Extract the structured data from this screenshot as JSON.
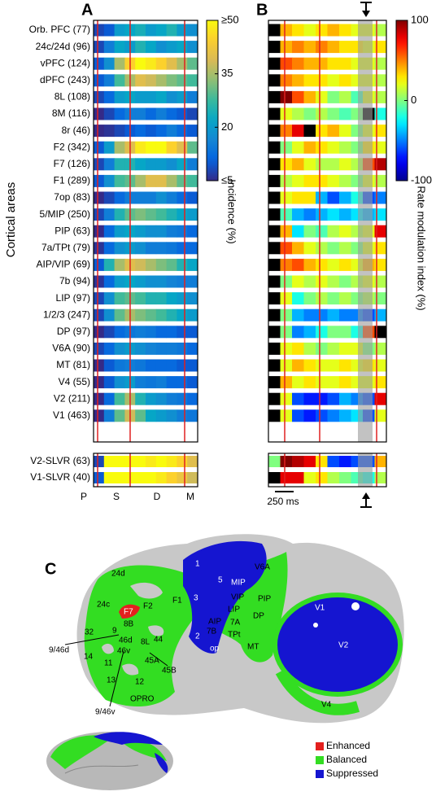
{
  "chart_data": [
    {
      "type": "heatmap",
      "panel": "A",
      "ylabel": "Cortical areas",
      "categories": [
        "Orb. PFC (77)",
        "24c/24d (96)",
        "vPFC (124)",
        "dPFC (243)",
        "8L (108)",
        "8M (116)",
        "8r (46)",
        "F2 (342)",
        "F7 (126)",
        "F1 (289)",
        "7op (83)",
        "5/MIP (250)",
        "PIP (63)",
        "7a/TPt (79)",
        "AIP/VIP (69)",
        "7b (94)",
        "LIP (97)",
        "1/2/3 (247)",
        "DP (97)",
        "V6A (90)",
        "MT (81)",
        "V4 (55)",
        "V2 (211)",
        "V1 (463)"
      ],
      "values": [
        [
          8,
          10,
          20,
          22,
          24,
          20,
          22,
          25,
          20,
          18
        ],
        [
          8,
          15,
          22,
          20,
          25,
          22,
          18,
          20,
          22,
          18
        ],
        [
          10,
          18,
          35,
          45,
          50,
          48,
          45,
          40,
          35,
          30
        ],
        [
          10,
          15,
          28,
          35,
          40,
          38,
          35,
          32,
          30,
          28
        ],
        [
          8,
          12,
          20,
          22,
          20,
          20,
          22,
          18,
          20,
          15
        ],
        [
          5,
          8,
          12,
          15,
          15,
          12,
          15,
          12,
          10,
          8
        ],
        [
          5,
          6,
          8,
          10,
          12,
          10,
          12,
          15,
          12,
          10
        ],
        [
          10,
          20,
          35,
          40,
          48,
          50,
          50,
          45,
          40,
          30
        ],
        [
          8,
          15,
          25,
          25,
          22,
          20,
          20,
          18,
          22,
          15
        ],
        [
          10,
          18,
          28,
          30,
          35,
          40,
          40,
          35,
          30,
          28
        ],
        [
          5,
          8,
          12,
          15,
          15,
          15,
          18,
          15,
          12,
          10
        ],
        [
          8,
          15,
          25,
          30,
          32,
          30,
          28,
          25,
          22,
          20
        ],
        [
          5,
          12,
          20,
          22,
          20,
          18,
          18,
          15,
          14,
          12
        ],
        [
          6,
          12,
          18,
          20,
          18,
          15,
          15,
          14,
          12,
          12
        ],
        [
          10,
          25,
          35,
          40,
          38,
          35,
          32,
          30,
          25,
          22
        ],
        [
          6,
          12,
          20,
          22,
          20,
          18,
          18,
          16,
          15,
          15
        ],
        [
          8,
          18,
          28,
          30,
          28,
          25,
          25,
          22,
          20,
          18
        ],
        [
          8,
          18,
          30,
          35,
          32,
          30,
          28,
          25,
          22,
          20
        ],
        [
          5,
          8,
          12,
          14,
          15,
          14,
          12,
          12,
          10,
          10
        ],
        [
          8,
          12,
          18,
          20,
          18,
          16,
          15,
          15,
          14,
          12
        ],
        [
          5,
          10,
          14,
          15,
          14,
          12,
          12,
          12,
          10,
          10
        ],
        [
          5,
          10,
          18,
          20,
          15,
          14,
          15,
          12,
          12,
          10
        ],
        [
          5,
          12,
          28,
          35,
          25,
          20,
          18,
          15,
          14,
          12
        ],
        [
          5,
          15,
          30,
          38,
          30,
          22,
          20,
          18,
          15,
          14
        ]
      ],
      "colormap": "parula",
      "zlim": [
        5,
        50
      ],
      "zticks": [
        {
          "value": 50,
          "label": "≥50"
        },
        35,
        20,
        {
          "value": 5,
          "label": "≤5"
        }
      ],
      "zlabel": "Incidence (%)"
    },
    {
      "type": "heatmap",
      "categories": [
        "V2-SLVR (63)",
        "V1-SLVR (40)"
      ],
      "values": [
        [
          8,
          50,
          50,
          50,
          50,
          48,
          50,
          48,
          45,
          40
        ],
        [
          10,
          50,
          50,
          50,
          50,
          50,
          48,
          45,
          42,
          38
        ]
      ],
      "xlabels": [
        "P",
        "S",
        "D",
        "M"
      ]
    },
    {
      "type": "heatmap",
      "panel": "B",
      "values": [
        [
          null,
          40,
          30,
          20,
          30,
          40,
          30,
          20,
          20,
          10
        ],
        [
          null,
          40,
          50,
          40,
          50,
          40,
          30,
          30,
          20,
          30
        ],
        [
          null,
          60,
          50,
          40,
          40,
          30,
          30,
          20,
          20,
          10
        ],
        [
          null,
          50,
          40,
          30,
          30,
          20,
          30,
          20,
          20,
          10
        ],
        [
          null,
          100,
          60,
          40,
          20,
          0,
          10,
          -10,
          20,
          10
        ],
        [
          null,
          20,
          10,
          0,
          10,
          0,
          -10,
          0,
          null,
          -20
        ],
        [
          null,
          50,
          80,
          null,
          30,
          40,
          20,
          0,
          20,
          30
        ],
        [
          null,
          0,
          20,
          40,
          30,
          20,
          10,
          0,
          30,
          20
        ],
        [
          null,
          30,
          40,
          20,
          10,
          10,
          20,
          10,
          60,
          90
        ],
        [
          null,
          10,
          20,
          30,
          30,
          20,
          10,
          0,
          20,
          10
        ],
        [
          null,
          20,
          30,
          30,
          -40,
          -60,
          -40,
          -20,
          -60,
          -50
        ],
        [
          null,
          -10,
          -40,
          -50,
          -40,
          -30,
          -40,
          -30,
          -40,
          -30
        ],
        [
          null,
          40,
          -30,
          0,
          -10,
          10,
          20,
          10,
          20,
          80
        ],
        [
          null,
          60,
          40,
          20,
          10,
          0,
          10,
          0,
          20,
          30
        ],
        [
          null,
          50,
          60,
          40,
          30,
          20,
          30,
          20,
          40,
          30
        ],
        [
          null,
          0,
          20,
          10,
          20,
          10,
          0,
          10,
          20,
          10
        ],
        [
          null,
          20,
          -20,
          0,
          10,
          0,
          10,
          0,
          10,
          0
        ],
        [
          null,
          0,
          -40,
          -50,
          -50,
          -40,
          -50,
          -50,
          -60,
          -40
        ],
        [
          null,
          0,
          -50,
          -40,
          -20,
          0,
          0,
          -20,
          60,
          null
        ],
        [
          null,
          20,
          30,
          10,
          0,
          10,
          20,
          20,
          0,
          10
        ],
        [
          null,
          20,
          40,
          30,
          20,
          20,
          30,
          20,
          30,
          20
        ],
        [
          null,
          40,
          20,
          30,
          20,
          20,
          30,
          20,
          20,
          30
        ],
        [
          null,
          20,
          -60,
          -70,
          -70,
          -60,
          -40,
          -50,
          -60,
          80
        ],
        [
          null,
          20,
          -60,
          -70,
          -60,
          -50,
          -40,
          -30,
          -60,
          20
        ]
      ],
      "colormap": "jet",
      "zlim": [
        -100,
        100
      ],
      "zticks": [
        100,
        0,
        -100
      ],
      "zlabel": "Rate modulation index (%)"
    },
    {
      "type": "heatmap",
      "values": [
        [
          0,
          100,
          90,
          80,
          30,
          -60,
          -70,
          -60,
          -60,
          40
        ],
        [
          null,
          80,
          80,
          20,
          30,
          10,
          0,
          -10,
          -20,
          10
        ]
      ],
      "scale_bar": "250 ms"
    }
  ],
  "diagram": {
    "panel": "C",
    "labels": [
      "1",
      "5",
      "MIP",
      "V6A",
      "F1",
      "3",
      "VIP",
      "PIP",
      "LIP",
      "7A",
      "AIP",
      "7B",
      "2",
      "op",
      "TPt",
      "DP",
      "MT",
      "V1",
      "V2",
      "V4",
      "24d",
      "F2",
      "24c",
      "F7",
      "8B",
      "9",
      "32",
      "46d",
      "46v",
      "8L",
      "44",
      "45A",
      "45B",
      "14",
      "11",
      "13",
      "12",
      "OPRO",
      "9/46d",
      "9/46v"
    ],
    "legend": [
      {
        "name": "Enhanced",
        "color": "#e3201e"
      },
      {
        "name": "Balanced",
        "color": "#33dd22"
      },
      {
        "name": "Suppressed",
        "color": "#1515d0"
      }
    ]
  }
}
